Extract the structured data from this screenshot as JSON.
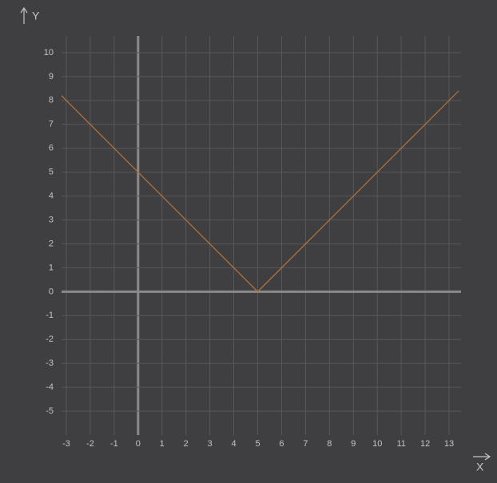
{
  "chart_data": {
    "type": "line",
    "xlabel": "X",
    "ylabel": "Y",
    "x": [
      -3.2,
      5,
      13.4
    ],
    "values": [
      8.2,
      0,
      8.4
    ],
    "color": "#b5743a",
    "xlim": [
      -3.2,
      13.5
    ],
    "ylim": [
      -6,
      10.7
    ],
    "xticks": [
      -3,
      -2,
      -1,
      0,
      1,
      2,
      3,
      4,
      5,
      6,
      7,
      8,
      9,
      10,
      11,
      12,
      13
    ],
    "yticks": [
      -5,
      -4,
      -3,
      -2,
      -1,
      0,
      1,
      2,
      3,
      4,
      5,
      6,
      7,
      8,
      9,
      10
    ],
    "grid": true
  }
}
